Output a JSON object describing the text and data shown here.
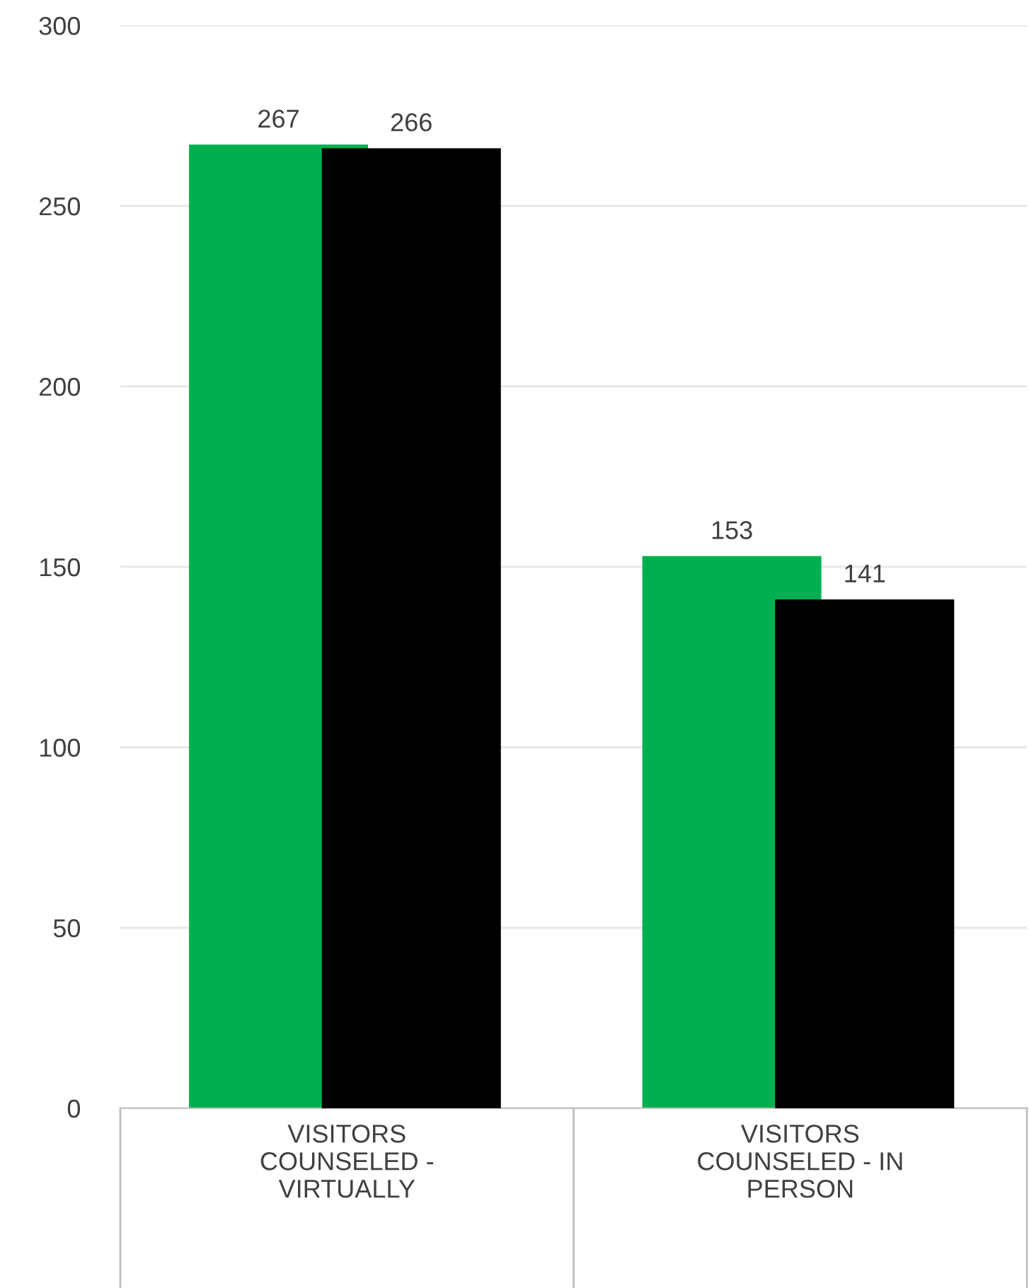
{
  "chart_data": {
    "type": "bar",
    "categories": [
      "VISITORS\nCOUNSELED -\nVIRTUALLY",
      "VISITORS\nCOUNSELED - IN\nPERSON"
    ],
    "series": [
      {
        "color": "#00b050",
        "values": [
          267,
          153
        ]
      },
      {
        "color": "#000000",
        "values": [
          266,
          141
        ]
      }
    ],
    "ylim": [
      0,
      300
    ],
    "yticks": [
      0,
      50,
      100,
      150,
      200,
      250,
      300
    ],
    "grid": "y",
    "data_labels": true
  }
}
